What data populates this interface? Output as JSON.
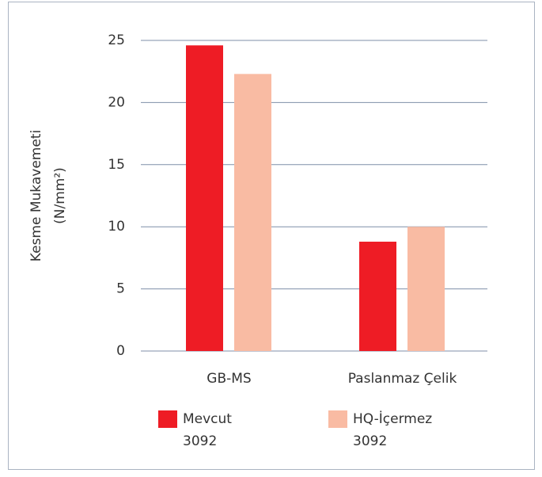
{
  "chart_data": {
    "type": "bar",
    "y_label": "Kesme Mukavemeti (N/mm²)",
    "categories": [
      "GB-MS",
      "Paslanmaz Çelik"
    ],
    "series": [
      {
        "name": "Mevcut 3092",
        "color": "#ee1c25",
        "values": [
          24.6,
          8.8
        ]
      },
      {
        "name": "HQ-İçermez 3092",
        "color": "#f9bba3",
        "values": [
          22.3,
          10.0
        ]
      }
    ],
    "ylim": [
      0,
      25
    ],
    "yticks": [
      0,
      5,
      10,
      15,
      20,
      25
    ],
    "grid": true,
    "legend": "bottom"
  }
}
